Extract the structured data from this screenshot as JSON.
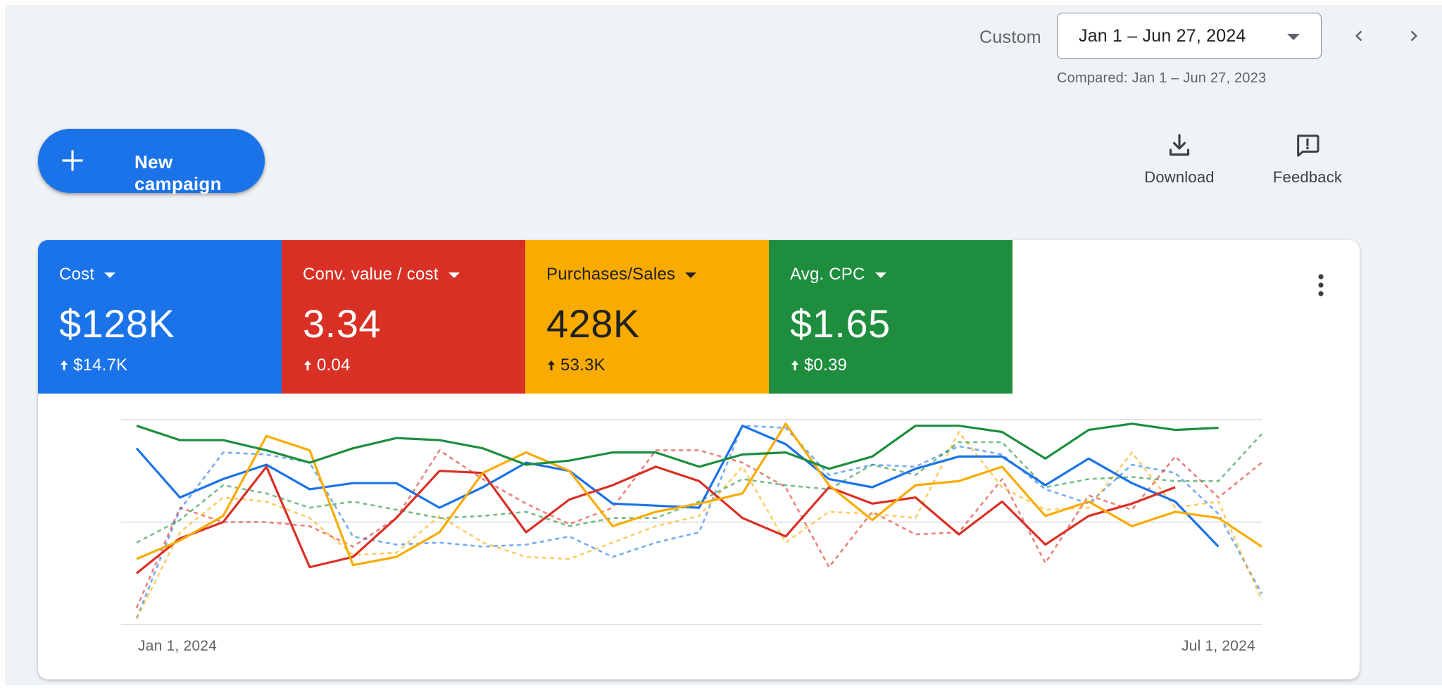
{
  "header": {
    "range_type": "Custom",
    "date_range": "Jan 1 – Jun 27, 2024",
    "compared": "Compared: Jan 1 – Jun 27, 2023",
    "prev_icon": "chevron-left-icon",
    "next_icon": "chevron-right-icon"
  },
  "actions": {
    "new_campaign": "New campaign",
    "download": "Download",
    "feedback": "Feedback"
  },
  "metrics": [
    {
      "label": "Cost",
      "value": "$128K",
      "delta": "$14.7K",
      "color": "#1a73e8",
      "text_color": "#ffffff"
    },
    {
      "label": "Conv. value / cost",
      "value": "3.34",
      "delta": "0.04",
      "color": "#d93025",
      "text_color": "#ffffff"
    },
    {
      "label": "Purchases/Sales",
      "value": "428K",
      "delta": "53.3K",
      "color": "#f9ab00",
      "text_color": "#202124"
    },
    {
      "label": "Avg. CPC",
      "value": "$1.65",
      "delta": "$0.39",
      "color": "#1e8e3e",
      "text_color": "#ffffff"
    }
  ],
  "chart_data": {
    "type": "line",
    "x_labels": [
      "Jan 1, 2024",
      "Jul 1, 2024"
    ],
    "ylim": [
      0,
      100
    ],
    "grid": true,
    "legend": "none",
    "series": [
      {
        "metric": "Cost",
        "period": "current",
        "color": "#1a73e8",
        "values": [
          86,
          62,
          71,
          78,
          66,
          69,
          69,
          57,
          67,
          79,
          75,
          59,
          58,
          57,
          97,
          88,
          71,
          67,
          76,
          82,
          82,
          68,
          81,
          69,
          60,
          38
        ]
      },
      {
        "metric": "Conv. value / cost",
        "period": "current",
        "color": "#d93025",
        "values": [
          25,
          42,
          50,
          77,
          28,
          33,
          52,
          75,
          74,
          45,
          61,
          68,
          77,
          70,
          52,
          43,
          67,
          59,
          62,
          44,
          60,
          39,
          53,
          59,
          67
        ]
      },
      {
        "metric": "Purchases/Sales",
        "period": "current",
        "color": "#f9ab00",
        "values": [
          32,
          41,
          53,
          92,
          85,
          29,
          33,
          45,
          74,
          84,
          75,
          48,
          55,
          59,
          64,
          98,
          68,
          51,
          68,
          70,
          77,
          53,
          60,
          48,
          55,
          52,
          38
        ]
      },
      {
        "metric": "Avg. CPC",
        "period": "current",
        "color": "#1e8e3e",
        "values": [
          97,
          90,
          90,
          85,
          79,
          86,
          91,
          90,
          86,
          78,
          80,
          84,
          84,
          77,
          83,
          84,
          76,
          82,
          97,
          97,
          94,
          81,
          95,
          98,
          95,
          96
        ]
      },
      {
        "metric": "Cost",
        "period": "previous",
        "color": "#1a73e8",
        "values": [
          3,
          56,
          84,
          83,
          79,
          43,
          39,
          40,
          38,
          39,
          43,
          33,
          40,
          45,
          97,
          96,
          73,
          78,
          77,
          87,
          83,
          66,
          59,
          78,
          74,
          54,
          15
        ]
      },
      {
        "metric": "Conv. value / cost",
        "period": "previous",
        "color": "#d93025",
        "values": [
          8,
          57,
          50,
          50,
          48,
          38,
          52,
          85,
          71,
          59,
          49,
          57,
          85,
          85,
          79,
          67,
          28,
          55,
          44,
          45,
          71,
          30,
          63,
          56,
          82,
          62,
          79
        ]
      },
      {
        "metric": "Purchases/Sales",
        "period": "previous",
        "color": "#f9ab00",
        "values": [
          3,
          45,
          62,
          60,
          52,
          34,
          35,
          53,
          40,
          33,
          32,
          40,
          48,
          53,
          77,
          40,
          55,
          54,
          52,
          94,
          67,
          56,
          57,
          84,
          57,
          60,
          12
        ]
      },
      {
        "metric": "Avg. CPC",
        "period": "previous",
        "color": "#1e8e3e",
        "values": [
          40,
          51,
          68,
          64,
          57,
          60,
          56,
          52,
          53,
          55,
          48,
          52,
          52,
          60,
          71,
          68,
          66,
          78,
          73,
          89,
          89,
          67,
          71,
          72,
          70,
          70,
          93
        ]
      }
    ]
  }
}
